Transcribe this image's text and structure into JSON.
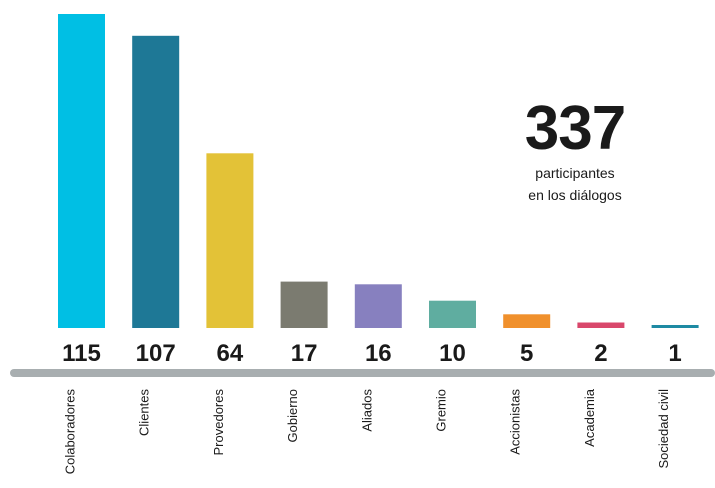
{
  "chart_data": {
    "type": "bar",
    "categories": [
      "Colaboradores",
      "Clientes",
      "Provedores",
      "Gobierno",
      "Aliados",
      "Gremio",
      "Accionistas",
      "Academia",
      "Sociedad civil"
    ],
    "values": [
      115,
      107,
      64,
      17,
      16,
      10,
      5,
      2,
      1
    ],
    "colors": [
      "#00bfe4",
      "#1e7896",
      "#e3c237",
      "#7b7b70",
      "#8780bf",
      "#5fada0",
      "#f0902c",
      "#d9476b",
      "#1e8aa3"
    ],
    "baseline_color": "#a8aeb0",
    "ylim": [
      0,
      115
    ],
    "grid": false,
    "legend": "none"
  },
  "summary": {
    "total": "337",
    "caption_line1": "participantes",
    "caption_line2": "en los diálogos"
  }
}
